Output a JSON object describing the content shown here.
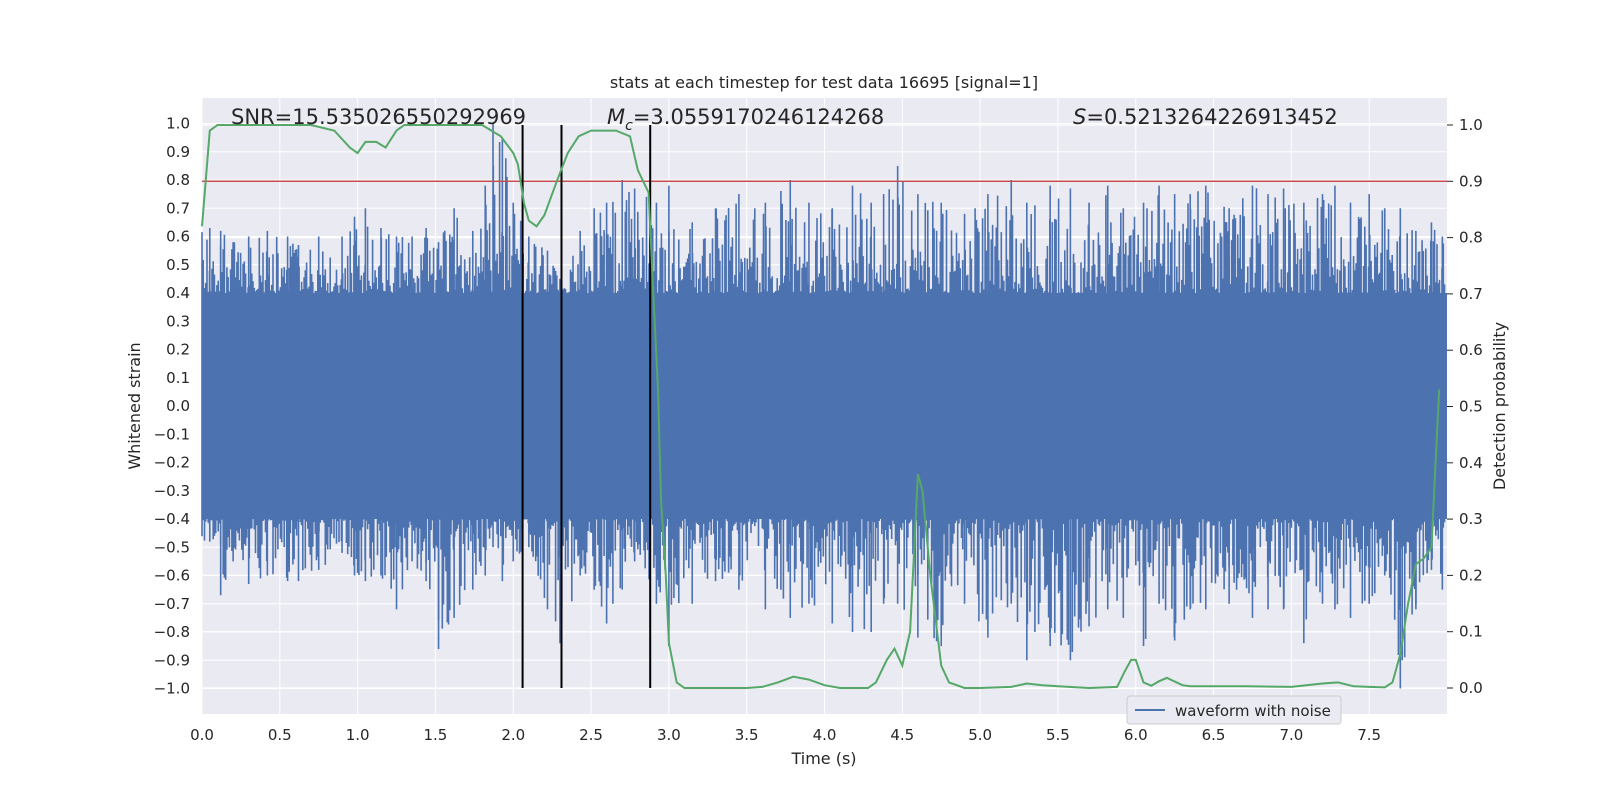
{
  "chart_data": {
    "type": "line",
    "title": "stats at each timestep for test data 16695 [signal=1]",
    "xlabel": "Time (s)",
    "ylabel": "Whitened strain",
    "y2label": "Detection probability",
    "xlim": [
      0.0,
      8.0
    ],
    "ylim": [
      -1.1,
      1.1
    ],
    "y2lim": [
      -0.05,
      1.05
    ],
    "x_ticks": [
      0.0,
      0.5,
      1.0,
      1.5,
      2.0,
      2.5,
      3.0,
      3.5,
      4.0,
      4.5,
      5.0,
      5.5,
      6.0,
      6.5,
      7.0,
      7.5
    ],
    "x_tick_labels": [
      "0.0",
      "0.5",
      "1.0",
      "1.5",
      "2.0",
      "2.5",
      "3.0",
      "3.5",
      "4.0",
      "4.5",
      "5.0",
      "5.5",
      "6.0",
      "6.5",
      "7.0",
      "7.5"
    ],
    "y_ticks": [
      1.0,
      0.9,
      0.8,
      0.7,
      0.6,
      0.5,
      0.4,
      0.3,
      0.2,
      0.1,
      0.0,
      -0.1,
      -0.2,
      -0.3,
      -0.4,
      -0.5,
      -0.6,
      -0.7,
      -0.8,
      -0.9,
      -1.0
    ],
    "y_tick_labels": [
      "1.0",
      "0.9",
      "0.8",
      "0.7",
      "0.6",
      "0.5",
      "0.4",
      "0.3",
      "0.2",
      "0.1",
      "0.0",
      "−0.1",
      "−0.2",
      "−0.3",
      "−0.4",
      "−0.5",
      "−0.6",
      "−0.7",
      "−0.8",
      "−0.9",
      "−1.0"
    ],
    "y2_ticks": [
      1.0,
      0.9,
      0.8,
      0.7,
      0.6,
      0.5,
      0.4,
      0.3,
      0.2,
      0.1,
      0.0
    ],
    "y2_tick_labels": [
      "1.0",
      "0.9",
      "0.8",
      "0.7",
      "0.6",
      "0.5",
      "0.4",
      "0.3",
      "0.2",
      "0.1",
      "0.0"
    ],
    "grid": true,
    "annotations": {
      "snr": "SNR=15.535026550292969",
      "mc_symbol": "M",
      "mc_sub": "c",
      "mc_value": "=3.0559170246124268",
      "s_symbol": "S",
      "s_value": "=0.5213264226913452"
    },
    "threshold": {
      "y2": 0.9,
      "color": "#c44e52"
    },
    "vertical_lines": [
      2.06,
      2.31,
      2.88
    ],
    "waveform": {
      "name": "waveform with noise",
      "color": "#4c72b0",
      "core_amplitude": 0.4,
      "spikes": [
        {
          "t": 0.05,
          "hi": 0.63,
          "lo": -0.48
        },
        {
          "t": 0.12,
          "hi": 0.62,
          "lo": -0.67
        },
        {
          "t": 0.2,
          "hi": 0.58,
          "lo": -0.55
        },
        {
          "t": 0.3,
          "hi": 0.6,
          "lo": -0.63
        },
        {
          "t": 0.42,
          "hi": 0.62,
          "lo": -0.6
        },
        {
          "t": 0.55,
          "hi": 0.6,
          "lo": -0.62
        },
        {
          "t": 0.62,
          "hi": 0.57,
          "lo": -0.62
        },
        {
          "t": 0.75,
          "hi": 0.6,
          "lo": -0.58
        },
        {
          "t": 0.9,
          "hi": 0.6,
          "lo": -0.52
        },
        {
          "t": 0.98,
          "hi": 0.67,
          "lo": -0.6
        },
        {
          "t": 1.05,
          "hi": 0.7,
          "lo": -0.62
        },
        {
          "t": 1.15,
          "hi": 0.63,
          "lo": -0.6
        },
        {
          "t": 1.25,
          "hi": 0.6,
          "lo": -0.72
        },
        {
          "t": 1.35,
          "hi": 0.6,
          "lo": -0.55
        },
        {
          "t": 1.44,
          "hi": 0.63,
          "lo": -0.62
        },
        {
          "t": 1.52,
          "hi": 0.58,
          "lo": -0.86
        },
        {
          "t": 1.62,
          "hi": 0.7,
          "lo": -0.75
        },
        {
          "t": 1.74,
          "hi": 0.62,
          "lo": -0.65
        },
        {
          "t": 1.82,
          "hi": 0.78,
          "lo": -0.6
        },
        {
          "t": 1.87,
          "hi": 1.0,
          "lo": -0.5
        },
        {
          "t": 1.93,
          "hi": 0.95,
          "lo": -0.62
        },
        {
          "t": 2.0,
          "hi": 0.72,
          "lo": -0.55
        },
        {
          "t": 2.1,
          "hi": 0.6,
          "lo": -0.5
        },
        {
          "t": 2.22,
          "hi": 0.55,
          "lo": -0.72
        },
        {
          "t": 2.3,
          "hi": 0.45,
          "lo": -0.84
        },
        {
          "t": 2.43,
          "hi": 0.62,
          "lo": -0.6
        },
        {
          "t": 2.52,
          "hi": 0.7,
          "lo": -0.65
        },
        {
          "t": 2.6,
          "hi": 0.72,
          "lo": -0.77
        },
        {
          "t": 2.7,
          "hi": 0.8,
          "lo": -0.65
        },
        {
          "t": 2.78,
          "hi": 0.77,
          "lo": -0.55
        },
        {
          "t": 2.92,
          "hi": 0.72,
          "lo": -0.7
        },
        {
          "t": 3.0,
          "hi": 0.78,
          "lo": -0.85
        },
        {
          "t": 3.15,
          "hi": 0.65,
          "lo": -0.7
        },
        {
          "t": 3.3,
          "hi": 0.7,
          "lo": -0.62
        },
        {
          "t": 3.45,
          "hi": 0.75,
          "lo": -0.65
        },
        {
          "t": 3.62,
          "hi": 0.72,
          "lo": -0.72
        },
        {
          "t": 3.78,
          "hi": 0.8,
          "lo": -0.75
        },
        {
          "t": 3.9,
          "hi": 0.72,
          "lo": -0.7
        },
        {
          "t": 4.05,
          "hi": 0.7,
          "lo": -0.77
        },
        {
          "t": 4.18,
          "hi": 0.78,
          "lo": -0.8
        },
        {
          "t": 4.3,
          "hi": 0.72,
          "lo": -0.8
        },
        {
          "t": 4.38,
          "hi": 0.75,
          "lo": -0.7
        },
        {
          "t": 4.47,
          "hi": 0.85,
          "lo": -0.7
        },
        {
          "t": 4.6,
          "hi": 0.75,
          "lo": -0.82
        },
        {
          "t": 4.75,
          "hi": 0.72,
          "lo": -0.85
        },
        {
          "t": 4.9,
          "hi": 0.68,
          "lo": -0.7
        },
        {
          "t": 5.05,
          "hi": 0.75,
          "lo": -0.82
        },
        {
          "t": 5.2,
          "hi": 0.8,
          "lo": -0.7
        },
        {
          "t": 5.3,
          "hi": 0.72,
          "lo": -0.9
        },
        {
          "t": 5.45,
          "hi": 0.78,
          "lo": -0.85
        },
        {
          "t": 5.58,
          "hi": 0.77,
          "lo": -0.9
        },
        {
          "t": 5.7,
          "hi": 0.72,
          "lo": -0.78
        },
        {
          "t": 5.82,
          "hi": 0.78,
          "lo": -0.72
        },
        {
          "t": 5.92,
          "hi": 0.7,
          "lo": -0.75
        },
        {
          "t": 6.05,
          "hi": 0.72,
          "lo": -0.85
        },
        {
          "t": 6.15,
          "hi": 0.78,
          "lo": -0.7
        },
        {
          "t": 6.25,
          "hi": 0.75,
          "lo": -0.83
        },
        {
          "t": 6.35,
          "hi": 0.75,
          "lo": -0.72
        },
        {
          "t": 6.45,
          "hi": 0.78,
          "lo": -0.72
        },
        {
          "t": 6.6,
          "hi": 0.7,
          "lo": -0.7
        },
        {
          "t": 6.75,
          "hi": 0.78,
          "lo": -0.75
        },
        {
          "t": 6.85,
          "hi": 0.75,
          "lo": -0.72
        },
        {
          "t": 6.95,
          "hi": 0.77,
          "lo": -0.72
        },
        {
          "t": 7.08,
          "hi": 0.72,
          "lo": -0.84
        },
        {
          "t": 7.2,
          "hi": 0.75,
          "lo": -0.7
        },
        {
          "t": 7.28,
          "hi": 0.78,
          "lo": -0.72
        },
        {
          "t": 7.38,
          "hi": 0.72,
          "lo": -0.75
        },
        {
          "t": 7.5,
          "hi": 0.75,
          "lo": -0.7
        },
        {
          "t": 7.6,
          "hi": 0.7,
          "lo": -0.6
        },
        {
          "t": 7.7,
          "hi": 0.7,
          "lo": -1.0
        },
        {
          "t": 7.8,
          "hi": 0.62,
          "lo": -0.72
        },
        {
          "t": 7.9,
          "hi": 0.65,
          "lo": -0.58
        },
        {
          "t": 7.97,
          "hi": 0.6,
          "lo": -0.65
        }
      ]
    },
    "probability": {
      "name": "detection probability",
      "color": "#55a868",
      "x": [
        0.0,
        0.05,
        0.1,
        0.2,
        0.5,
        0.7,
        0.85,
        0.95,
        1.0,
        1.05,
        1.12,
        1.18,
        1.25,
        1.3,
        1.4,
        1.6,
        1.8,
        1.92,
        2.0,
        2.03,
        2.07,
        2.1,
        2.15,
        2.2,
        2.28,
        2.35,
        2.42,
        2.5,
        2.58,
        2.66,
        2.75,
        2.8,
        2.87,
        2.9,
        2.93,
        2.95,
        2.98,
        3.0,
        3.05,
        3.1,
        3.2,
        3.5,
        3.6,
        3.7,
        3.8,
        3.9,
        4.0,
        4.1,
        4.2,
        4.28,
        4.33,
        4.4,
        4.45,
        4.5,
        4.55,
        4.6,
        4.63,
        4.68,
        4.75,
        4.8,
        4.9,
        5.0,
        5.2,
        5.3,
        5.4,
        5.5,
        5.7,
        5.88,
        5.93,
        5.97,
        6.0,
        6.05,
        6.1,
        6.15,
        6.2,
        6.3,
        6.35,
        6.5,
        6.7,
        7.0,
        7.2,
        7.3,
        7.4,
        7.5,
        7.6,
        7.65,
        7.7,
        7.75,
        7.8,
        7.85,
        7.9,
        7.95
      ],
      "y": [
        0.82,
        0.99,
        1.0,
        1.0,
        1.0,
        1.0,
        0.99,
        0.96,
        0.95,
        0.97,
        0.97,
        0.96,
        0.99,
        1.0,
        1.0,
        1.0,
        1.0,
        0.98,
        0.95,
        0.93,
        0.86,
        0.83,
        0.82,
        0.84,
        0.9,
        0.95,
        0.98,
        0.99,
        0.99,
        0.99,
        0.98,
        0.92,
        0.88,
        0.7,
        0.53,
        0.33,
        0.2,
        0.08,
        0.01,
        0.0,
        0.0,
        0.0,
        0.002,
        0.01,
        0.02,
        0.015,
        0.005,
        0.0,
        0.0,
        0.0,
        0.01,
        0.05,
        0.07,
        0.04,
        0.1,
        0.38,
        0.35,
        0.2,
        0.04,
        0.01,
        0.0,
        0.0,
        0.002,
        0.008,
        0.005,
        0.003,
        0.0,
        0.002,
        0.03,
        0.05,
        0.05,
        0.01,
        0.004,
        0.012,
        0.018,
        0.005,
        0.003,
        0.003,
        0.003,
        0.002,
        0.008,
        0.01,
        0.003,
        0.002,
        0.001,
        0.01,
        0.06,
        0.15,
        0.22,
        0.23,
        0.25,
        0.53
      ]
    },
    "legend": {
      "label": "waveform with noise",
      "position": "lower-right"
    },
    "colors": {
      "axes_bg": "#eaeaf2",
      "grid": "#ffffff",
      "vline": "#000000"
    }
  }
}
